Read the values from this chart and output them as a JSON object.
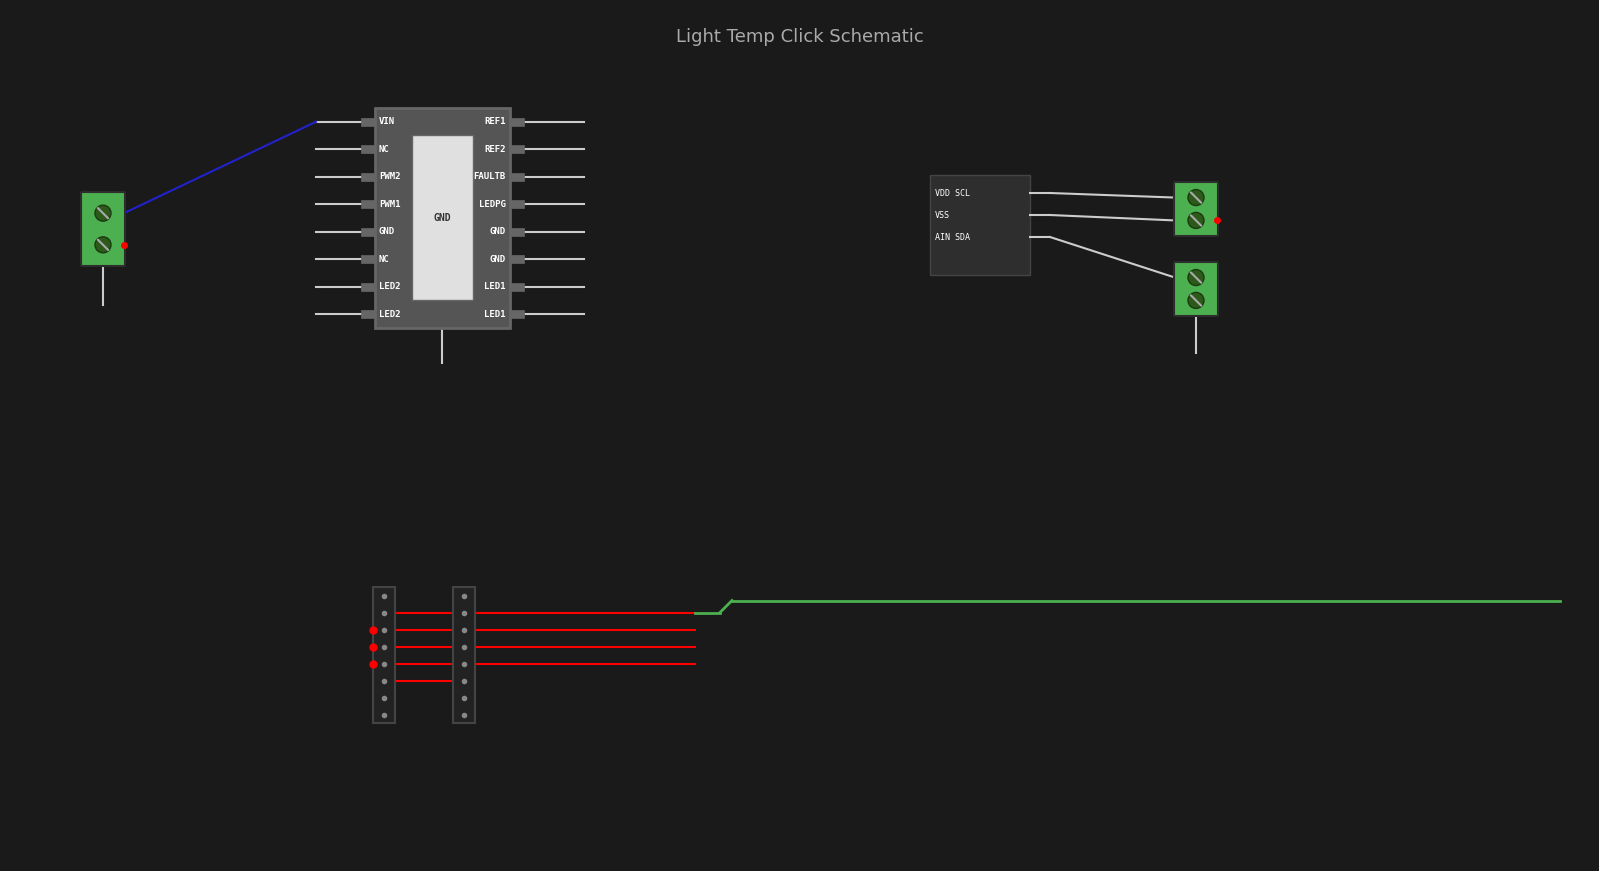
{
  "background_color": "#1a1a1a",
  "ic_body_color": "#555555",
  "ic_pad_color": "#666666",
  "ic_text_color": "#ffffff",
  "wire_color": "#cccccc",
  "red_wire_color": "#ff0000",
  "green_wire_color": "#4caf50",
  "blue_wire_color": "#2222cc",
  "connector_green": "#4caf50",
  "connector_dark": "#2d5a1b",
  "title": "Light Temp Click Schematic",
  "ic_left_pins": [
    "VIN",
    "NC",
    "PWM2",
    "PWM1",
    "GND",
    "NC",
    "LED2",
    "LED2"
  ],
  "ic_right_pins": [
    "REF1",
    "REF2",
    "FAULTB",
    "LEDPG",
    "GND",
    "GND",
    "LED1",
    "LED1"
  ],
  "ic_center_label": "GND",
  "connector_2pin_labels": [
    "VDD SCL",
    "VSS",
    "AIN SDA"
  ]
}
